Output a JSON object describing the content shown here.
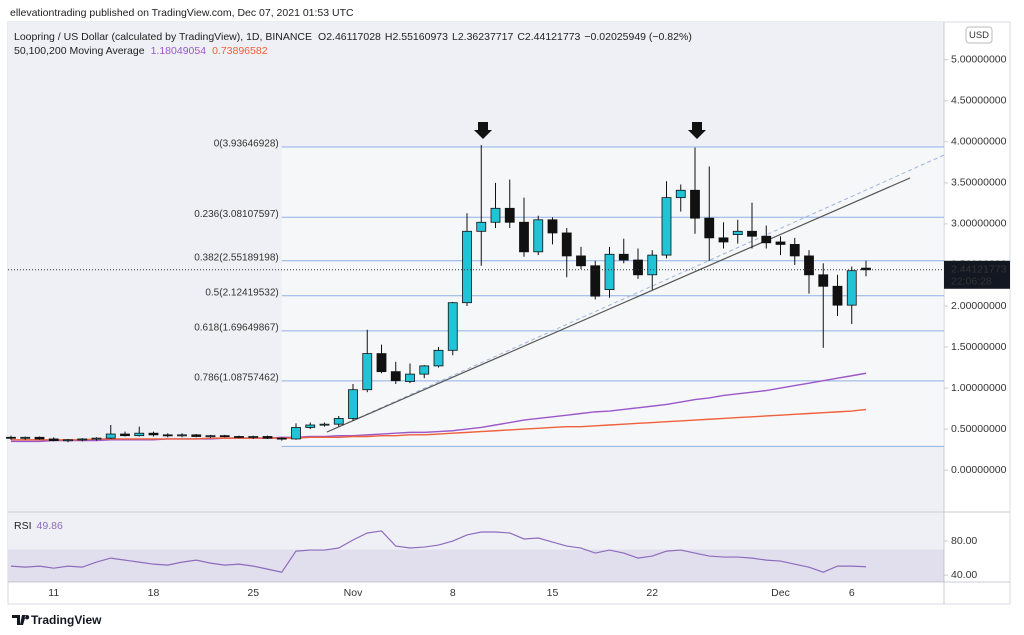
{
  "header": {
    "publisher": "ellevationtrading published on TradingView.com, Dec 07, 2021 01:53 UTC",
    "brand": "TradingView"
  },
  "chart_data": {
    "type": "candlestick",
    "title": "Loopring / US Dollar (calculated by TradingView), 1D, BINANCE",
    "ohlc_prefixes": [
      "O",
      "H",
      "L",
      "C"
    ],
    "change": "−0.02025949 (−0.82%)",
    "currency": "USD",
    "countdown": "22:06:28",
    "categories": [
      null,
      null,
      null,
      "11",
      null,
      null,
      null,
      null,
      null,
      null,
      "18",
      null,
      null,
      null,
      null,
      null,
      null,
      "25",
      null,
      null,
      null,
      null,
      null,
      null,
      "Nov",
      null,
      null,
      null,
      null,
      null,
      null,
      "8",
      null,
      null,
      null,
      null,
      null,
      null,
      "15",
      null,
      null,
      null,
      null,
      null,
      null,
      "22",
      null,
      null,
      null,
      null,
      null,
      null,
      null,
      null,
      "Dec",
      null,
      null,
      null,
      null,
      "6",
      null
    ],
    "open": [
      0.4,
      0.39,
      0.4,
      0.38,
      0.36,
      0.37,
      0.38,
      0.39,
      0.44,
      0.42,
      0.45,
      0.43,
      0.42,
      0.43,
      0.41,
      0.42,
      0.41,
      0.4,
      0.41,
      0.39,
      0.38,
      0.52,
      0.55,
      0.56,
      0.63,
      0.98,
      1.42,
      1.2,
      1.08,
      1.17,
      1.27,
      1.46,
      2.04,
      2.91,
      3.02,
      3.19,
      3.02,
      2.66,
      3.05,
      2.89,
      2.61,
      2.49,
      2.2,
      2.63,
      2.56,
      2.38,
      2.62,
      3.32,
      3.41,
      3.07,
      2.83,
      2.87,
      2.91,
      2.85,
      2.78,
      2.75,
      2.61,
      2.38,
      2.24,
      2.01,
      2.46117028
    ],
    "high": [
      0.42,
      0.41,
      0.41,
      0.4,
      0.38,
      0.39,
      0.4,
      0.55,
      0.47,
      0.53,
      0.47,
      0.45,
      0.45,
      0.44,
      0.43,
      0.43,
      0.42,
      0.42,
      0.42,
      0.4,
      0.57,
      0.58,
      0.58,
      0.66,
      1.05,
      1.71,
      1.53,
      1.32,
      1.3,
      1.28,
      1.5,
      2.05,
      3.13,
      3.96,
      3.5,
      3.54,
      3.32,
      3.1,
      3.08,
      2.95,
      2.72,
      2.55,
      2.72,
      2.82,
      2.7,
      2.68,
      3.52,
      3.48,
      3.93,
      3.7,
      3.02,
      3.05,
      3.26,
      2.98,
      2.85,
      2.83,
      2.68,
      2.52,
      2.38,
      2.48,
      2.55160973
    ],
    "low": [
      0.37,
      0.37,
      0.37,
      0.35,
      0.34,
      0.35,
      0.36,
      0.38,
      0.41,
      0.41,
      0.41,
      0.4,
      0.4,
      0.4,
      0.39,
      0.4,
      0.39,
      0.38,
      0.38,
      0.36,
      0.37,
      0.5,
      0.53,
      0.53,
      0.6,
      0.95,
      1.18,
      1.05,
      1.06,
      1.12,
      1.25,
      1.4,
      2.0,
      2.49,
      2.95,
      2.95,
      2.6,
      2.62,
      2.75,
      2.35,
      2.45,
      2.08,
      2.1,
      2.52,
      2.33,
      2.2,
      2.58,
      3.15,
      2.88,
      2.55,
      2.7,
      2.76,
      2.7,
      2.7,
      2.62,
      2.5,
      2.15,
      1.49,
      1.88,
      1.78,
      2.36237717
    ],
    "close": [
      0.39,
      0.4,
      0.38,
      0.36,
      0.37,
      0.38,
      0.39,
      0.44,
      0.42,
      0.45,
      0.43,
      0.42,
      0.43,
      0.41,
      0.42,
      0.41,
      0.4,
      0.41,
      0.39,
      0.38,
      0.52,
      0.55,
      0.56,
      0.63,
      0.98,
      1.42,
      1.2,
      1.09,
      1.17,
      1.27,
      1.46,
      2.04,
      2.91,
      3.02,
      3.19,
      3.02,
      2.66,
      3.05,
      2.89,
      2.61,
      2.49,
      2.12,
      2.63,
      2.56,
      2.38,
      2.62,
      3.32,
      3.41,
      3.07,
      2.83,
      2.78,
      2.91,
      2.85,
      2.77,
      2.75,
      2.61,
      2.38,
      2.24,
      2.01,
      2.43,
      2.44121773
    ],
    "up_color": "#22c3d6",
    "down_color": "#111111",
    "ylim": [
      -0.51,
      5.46
    ],
    "yticks": [
      {
        "value": 0,
        "label": "0.00000000"
      },
      {
        "value": 0.5,
        "label": "0.50000000"
      },
      {
        "value": 1,
        "label": "1.00000000"
      },
      {
        "value": 1.5,
        "label": "1.50000000"
      },
      {
        "value": 2,
        "label": "2.00000000"
      },
      {
        "value": 2.5,
        "label": "2.50000000"
      },
      {
        "value": 3,
        "label": "3.00000000"
      },
      {
        "value": 3.5,
        "label": "3.50000000"
      },
      {
        "value": 4,
        "label": "4.00000000"
      },
      {
        "value": 4.5,
        "label": "4.50000000"
      },
      {
        "value": 5,
        "label": "5.00000000"
      }
    ],
    "moving_average": {
      "name": "50,100,200 Moving Average",
      "series": [
        {
          "color": "#9c58c9",
          "values": [
            0.35,
            0.35,
            0.35,
            0.36,
            0.36,
            0.36,
            0.36,
            0.37,
            0.37,
            0.37,
            0.37,
            0.38,
            0.38,
            0.38,
            0.38,
            0.39,
            0.39,
            0.39,
            0.39,
            0.4,
            0.4,
            0.41,
            0.41,
            0.42,
            0.42,
            0.43,
            0.44,
            0.45,
            0.46,
            0.46,
            0.47,
            0.48,
            0.5,
            0.52,
            0.55,
            0.58,
            0.61,
            0.63,
            0.65,
            0.67,
            0.69,
            0.71,
            0.72,
            0.74,
            0.76,
            0.78,
            0.8,
            0.83,
            0.86,
            0.88,
            0.91,
            0.93,
            0.95,
            0.97,
            1.0,
            1.03,
            1.06,
            1.09,
            1.12,
            1.15,
            1.18049054
          ]
        },
        {
          "color": "#f0603a",
          "values": [
            0.37,
            0.37,
            0.37,
            0.37,
            0.37,
            0.37,
            0.38,
            0.38,
            0.38,
            0.38,
            0.38,
            0.38,
            0.38,
            0.38,
            0.39,
            0.39,
            0.39,
            0.39,
            0.39,
            0.39,
            0.39,
            0.4,
            0.4,
            0.4,
            0.41,
            0.41,
            0.42,
            0.42,
            0.43,
            0.43,
            0.44,
            0.45,
            0.46,
            0.47,
            0.48,
            0.49,
            0.5,
            0.51,
            0.52,
            0.53,
            0.53,
            0.54,
            0.55,
            0.56,
            0.57,
            0.58,
            0.59,
            0.6,
            0.61,
            0.62,
            0.63,
            0.64,
            0.65,
            0.66,
            0.67,
            0.68,
            0.69,
            0.7,
            0.71,
            0.72,
            0.73896582
          ]
        }
      ]
    },
    "fib_levels": [
      {
        "label": "0(3.93646928)",
        "value": 3.93646928
      },
      {
        "label": "0.236(3.08107597)",
        "value": 3.08107597
      },
      {
        "label": "0.382(2.55189198)",
        "value": 2.55189198
      },
      {
        "label": "0.5(2.12419532)",
        "value": 2.12419532
      },
      {
        "label": "0.618(1.69649867)",
        "value": 1.69649867
      },
      {
        "label": "0.786(1.08757462)",
        "value": 1.08757462
      },
      {
        "value": 0.29
      }
    ],
    "fib_color": "#8fb0e6",
    "rsi": {
      "name": "RSI",
      "color": "#8e6bbd",
      "values": [
        50.6,
        49.4,
        50.6,
        48.2,
        50.6,
        49.4,
        55.3,
        60,
        57.6,
        55.3,
        52.9,
        51.8,
        55.3,
        57.6,
        54.1,
        51.8,
        52.9,
        50.6,
        47.1,
        43.5,
        68.2,
        69.4,
        69.4,
        71.8,
        81.2,
        89.4,
        91.8,
        74.1,
        71.8,
        72.9,
        75.3,
        80,
        87.1,
        90.6,
        90.6,
        89.4,
        82.4,
        83.5,
        78.8,
        74.1,
        71.8,
        65.9,
        69.4,
        65.9,
        60,
        62.4,
        68.2,
        69.4,
        65.9,
        62.4,
        61.2,
        61.2,
        60,
        57.6,
        56.5,
        52.9,
        49.4,
        43.5,
        50.6,
        50.6,
        49.86
      ],
      "ylim": [
        32,
        114
      ],
      "yticks": [
        {
          "value": 40,
          "label": "40.00"
        },
        {
          "value": 80,
          "label": "80.00"
        }
      ],
      "band": [
        30,
        70
      ]
    }
  }
}
